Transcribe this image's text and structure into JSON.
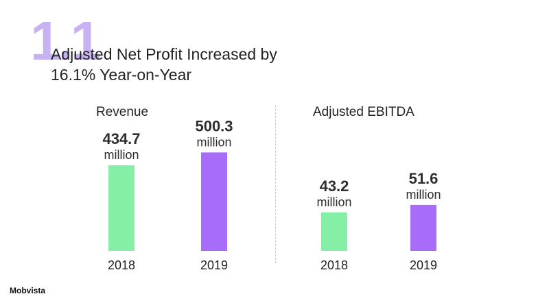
{
  "header": {
    "section_number": "1.1",
    "title_line1": "Adjusted Net Profit Increased by",
    "title_line2": "16.1% Year-on-Year"
  },
  "footer": {
    "logo_text": "Mobvista"
  },
  "colors": {
    "year_2018": "#86efa6",
    "year_2019": "#a76cf8",
    "accent": "#c9b2f2"
  },
  "chart_data": [
    {
      "type": "bar",
      "title": "Revenue",
      "categories": [
        "2018",
        "2019"
      ],
      "values": [
        434.7,
        500.3
      ],
      "value_labels": [
        "434.7",
        "500.3"
      ],
      "unit_label": "million",
      "ylim": [
        0,
        540
      ],
      "grid": false
    },
    {
      "type": "bar",
      "title": "Adjusted EBITDA",
      "categories": [
        "2018",
        "2019"
      ],
      "values": [
        43.2,
        51.6
      ],
      "value_labels": [
        "43.2",
        "51.6"
      ],
      "unit_label": "million",
      "ylim": [
        0,
        100
      ],
      "grid": false
    }
  ]
}
